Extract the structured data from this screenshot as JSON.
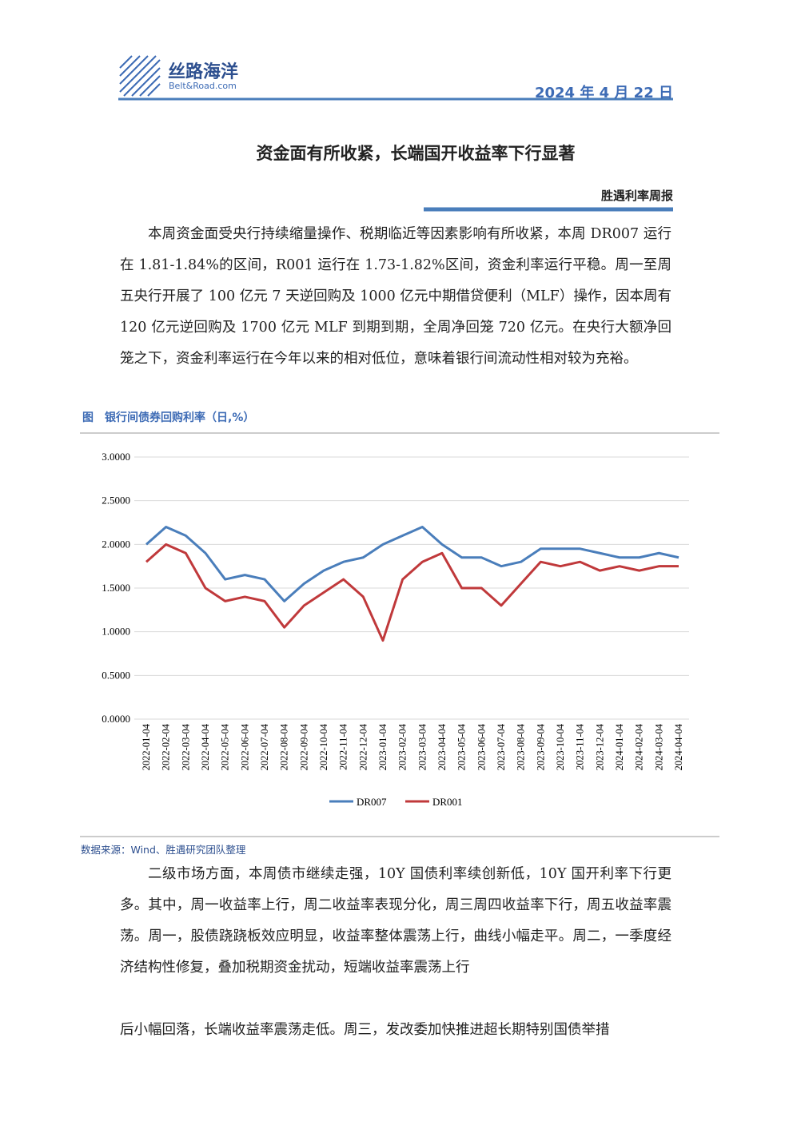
{
  "header": {
    "logo_cn": "丝路海洋",
    "logo_en": "Belt&Road.com",
    "date": "2024 年 4 月 22 日"
  },
  "title": "资金面有所收紧，长端国开收益率下行显著",
  "report_name": "胜遇利率周报",
  "paragraphs": [
    "本周资金面受央行持续缩量操作、税期临近等因素影响有所收紧，本周 DR007 运行在 1.81-1.84%的区间，R001 运行在 1.73-1.82%区间，资金利率运行平稳。周一至周五央行开展了 100 亿元 7 天逆回购及 1000 亿元中期借贷便利（MLF）操作，因本周有 120 亿元逆回购及 1700 亿元 MLF 到期到期，全周净回笼 720 亿元。在央行大额净回笼之下，资金利率运行在今年以来的相对低位，意味着银行间流动性相对较为充裕。"
  ],
  "chart_data": {
    "type": "line",
    "title": "图　银行间债券回购利率（日,%）",
    "categories": [
      "2022-01-04",
      "2022-02-04",
      "2022-03-04",
      "2022-04-04",
      "2022-05-04",
      "2022-06-04",
      "2022-07-04",
      "2022-08-04",
      "2022-09-04",
      "2022-10-04",
      "2022-11-04",
      "2022-12-04",
      "2023-01-04",
      "2023-02-04",
      "2023-03-04",
      "2023-04-04",
      "2023-05-04",
      "2023-06-04",
      "2023-07-04",
      "2023-08-04",
      "2023-09-04",
      "2023-10-04",
      "2023-11-04",
      "2023-12-04",
      "2024-01-04",
      "2024-02-04",
      "2024-03-04",
      "2024-04-04"
    ],
    "series": [
      {
        "name": "DR007",
        "color": "#4a7ebb",
        "values": [
          2.0,
          2.2,
          2.1,
          1.9,
          1.6,
          1.65,
          1.6,
          1.35,
          1.55,
          1.7,
          1.8,
          1.85,
          2.0,
          2.1,
          2.2,
          2.0,
          1.85,
          1.85,
          1.75,
          1.8,
          1.95,
          1.95,
          1.95,
          1.9,
          1.85,
          1.85,
          1.9,
          1.85
        ]
      },
      {
        "name": "DR001",
        "color": "#c0393b",
        "values": [
          1.8,
          2.0,
          1.9,
          1.5,
          1.35,
          1.4,
          1.35,
          1.05,
          1.3,
          1.45,
          1.6,
          1.4,
          0.9,
          1.6,
          1.8,
          1.9,
          1.5,
          1.5,
          1.3,
          1.55,
          1.8,
          1.75,
          1.8,
          1.7,
          1.75,
          1.7,
          1.75,
          1.75
        ]
      }
    ],
    "ylim": [
      0,
      3
    ],
    "yticks": [
      {
        "value": 0,
        "label": "0.0000"
      },
      {
        "value": 0.5,
        "label": "0.5000"
      },
      {
        "value": 1,
        "label": "1.0000"
      },
      {
        "value": 1.5,
        "label": "1.5000"
      },
      {
        "value": 2,
        "label": "2.0000"
      },
      {
        "value": 2.5,
        "label": "2.5000"
      },
      {
        "value": 3,
        "label": "3.0000"
      }
    ],
    "grid": true,
    "legend": "bottom"
  },
  "source": "数据来源：Wind、胜遇研究团队整理",
  "paragraphs_2": [
    "二级市场方面，本周债市继续走强，10Y 国债利率续创新低，10Y 国开利率下行更多。其中，周一收益率上行，周二收益率表现分化，周三周四收益率下行，周五收益率震荡。周一，股债跷跷板效应明显，收益率整体震荡上行，曲线小幅走平。周二，一季度经济结构性修复，叠加税期资金扰动，短端收益率震荡上行",
    "后小幅回落，长端收益率震荡走低。周三，发改委加快推进超长期特别国债举措"
  ]
}
